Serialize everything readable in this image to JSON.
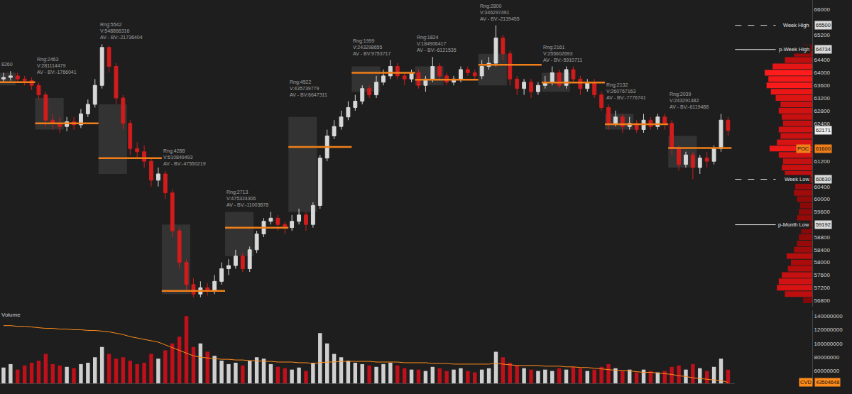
{
  "chart_data": {
    "type": "candlestick",
    "tick_labels": "y",
    "grid": false,
    "x": [
      0,
      1,
      2,
      3,
      4,
      5,
      6,
      7,
      8,
      9,
      10,
      11,
      12,
      13,
      14,
      15,
      16,
      17,
      18,
      19,
      20,
      21,
      22,
      23,
      24,
      25,
      26,
      27,
      28,
      29,
      30,
      31,
      32,
      33,
      34,
      35,
      36,
      37,
      38,
      39,
      40,
      41,
      42,
      43,
      44,
      45,
      46,
      47,
      48,
      49,
      50,
      51,
      52,
      53,
      54,
      55,
      56,
      57,
      58,
      59,
      60,
      61,
      62,
      63,
      64,
      65,
      66,
      67,
      68,
      69,
      70,
      71,
      72,
      73,
      74,
      75,
      76,
      77,
      78,
      79,
      80,
      81,
      82,
      83,
      84,
      85,
      86,
      87,
      88,
      89,
      90,
      91,
      92,
      93,
      94,
      95,
      96,
      97,
      98,
      99,
      100,
      101,
      102,
      103
    ],
    "open": [
      63800,
      63850,
      63900,
      63800,
      63750,
      63600,
      63300,
      62500,
      62400,
      62300,
      62450,
      62350,
      62700,
      63000,
      63600,
      64800,
      64200,
      63200,
      62400,
      61600,
      61500,
      61200,
      60600,
      60800,
      60200,
      59000,
      58000,
      57300,
      57000,
      57200,
      57100,
      57400,
      57800,
      57900,
      58200,
      57800,
      58400,
      58900,
      59300,
      59400,
      59200,
      59100,
      59300,
      59500,
      59200,
      59800,
      61300,
      62000,
      62300,
      62600,
      62900,
      63100,
      63500,
      63300,
      63700,
      63900,
      64200,
      63900,
      63800,
      64000,
      63600,
      63800,
      64200,
      63900,
      63700,
      63800,
      64100,
      64000,
      63900,
      64200,
      64300,
      65100,
      64600,
      63800,
      63500,
      63700,
      63400,
      63600,
      63700,
      64000,
      63600,
      64100,
      63800,
      63500,
      63700,
      63300,
      62900,
      62400,
      62600,
      62300,
      62400,
      62200,
      62500,
      62300,
      62600,
      62400,
      61600,
      61100,
      61400,
      61000,
      61300,
      61200,
      61600,
      62500
    ],
    "high": [
      64000,
      64050,
      64000,
      63900,
      63850,
      63700,
      63400,
      62700,
      62600,
      62600,
      62600,
      62850,
      63150,
      63800,
      64900,
      64850,
      64300,
      63300,
      62500,
      61800,
      61700,
      61300,
      61000,
      60900,
      60300,
      59100,
      58100,
      57500,
      57400,
      57350,
      57600,
      58000,
      58100,
      58400,
      58300,
      58500,
      59000,
      59400,
      59600,
      59500,
      59300,
      59500,
      59700,
      59600,
      59900,
      61400,
      62200,
      62500,
      62800,
      63100,
      63300,
      63600,
      63600,
      63900,
      64100,
      64400,
      64300,
      64000,
      64100,
      64100,
      63900,
      64500,
      64300,
      64000,
      63900,
      64200,
      64200,
      64100,
      64400,
      64500,
      65500,
      65200,
      64700,
      63900,
      63800,
      63800,
      63700,
      63900,
      64200,
      64100,
      64200,
      64200,
      63900,
      63800,
      63800,
      63400,
      63000,
      62800,
      62700,
      62600,
      62500,
      62700,
      62600,
      62700,
      62700,
      62500,
      61700,
      61500,
      61500,
      61400,
      61500,
      61700,
      62700,
      62600
    ],
    "low": [
      63700,
      63750,
      63700,
      63600,
      63450,
      63150,
      62300,
      62200,
      62100,
      62150,
      62200,
      62250,
      62600,
      62900,
      63500,
      64000,
      63000,
      62200,
      61400,
      61300,
      61000,
      60400,
      60400,
      60000,
      58800,
      57800,
      57100,
      56900,
      56900,
      56950,
      57000,
      57300,
      57600,
      57800,
      57700,
      57700,
      58300,
      58800,
      59200,
      59000,
      58900,
      59000,
      59200,
      59000,
      59100,
      59700,
      61200,
      61900,
      62200,
      62500,
      62800,
      63000,
      63200,
      63200,
      63600,
      63800,
      63800,
      63600,
      63700,
      63500,
      63400,
      63700,
      63800,
      63600,
      63600,
      63700,
      63900,
      63800,
      63800,
      64100,
      64200,
      64400,
      63600,
      63300,
      63300,
      63200,
      63300,
      63500,
      63600,
      63500,
      63500,
      63700,
      63300,
      63400,
      63200,
      62800,
      62200,
      62300,
      62100,
      62200,
      62100,
      62100,
      62200,
      62200,
      62200,
      61400,
      60900,
      61000,
      60630,
      60800,
      61000,
      61100,
      61500,
      62000
    ],
    "close": [
      63850,
      63900,
      63800,
      63750,
      63600,
      63300,
      62500,
      62400,
      62300,
      62450,
      62350,
      62700,
      63000,
      63600,
      64800,
      64200,
      63200,
      62400,
      61600,
      61500,
      61200,
      60600,
      60800,
      60200,
      59000,
      58000,
      57300,
      57000,
      57200,
      57100,
      57400,
      57800,
      57900,
      58200,
      57800,
      58400,
      58900,
      59300,
      59400,
      59200,
      59100,
      59300,
      59500,
      59200,
      59800,
      61300,
      62000,
      62300,
      62600,
      62900,
      63100,
      63500,
      63300,
      63700,
      63900,
      64200,
      63900,
      63800,
      64000,
      63600,
      63800,
      64200,
      63900,
      63700,
      63800,
      64100,
      64000,
      63900,
      64200,
      64300,
      65100,
      64600,
      63800,
      63500,
      63700,
      63400,
      63600,
      63700,
      64000,
      63600,
      64100,
      63800,
      63500,
      63700,
      63300,
      62900,
      62400,
      62600,
      62300,
      62400,
      62200,
      62500,
      62300,
      62600,
      62400,
      61600,
      61100,
      61400,
      61000,
      61300,
      61200,
      61600,
      62500,
      62171
    ],
    "xlim": [
      -0.5,
      104
    ],
    "ylim": [
      56600,
      66300
    ],
    "yticks": [
      56800,
      57200,
      57600,
      58000,
      58400,
      58800,
      59600,
      60000,
      60400,
      61200,
      62400,
      62800,
      63200,
      63600,
      64000,
      64400,
      65200,
      66000
    ],
    "sessions": [
      {
        "start": 0,
        "labels": [
          "8260"
        ],
        "poc": 63700,
        "value_area": [
          63600,
          64000
        ]
      },
      {
        "start": 5,
        "labels": [
          "Rng:2463",
          "V:281114479",
          "AV - BV:-1766041"
        ],
        "poc": 62400,
        "value_area": [
          62200,
          63200
        ]
      },
      {
        "start": 14,
        "labels": [
          "Rng:5542",
          "V:548866316",
          "AV - BV:-21736404"
        ],
        "poc": 61300,
        "value_area": [
          60800,
          63000
        ]
      },
      {
        "start": 23,
        "labels": [
          "Rng:4288",
          "V:610849493",
          "AV - BV:-47550219"
        ],
        "poc": 57100,
        "value_area": [
          57000,
          59200
        ]
      },
      {
        "start": 32,
        "labels": [
          "Rng:2713",
          "V:475324306",
          "AV - BV:-11003878"
        ],
        "poc": 59100,
        "value_area": [
          58200,
          59600
        ]
      },
      {
        "start": 41,
        "labels": [
          "Rng:4522",
          "V:435739779",
          "AV - BV:6647311"
        ],
        "poc": 61650,
        "value_area": [
          59600,
          62600
        ]
      },
      {
        "start": 50,
        "labels": [
          "Rng:1999",
          "V:243298655",
          "AV - BV:9753717"
        ],
        "poc": 64000,
        "value_area": [
          63400,
          64200
        ]
      },
      {
        "start": 59,
        "labels": [
          "Rng:1824",
          "V:184906417",
          "AV - BV:-6121535"
        ],
        "poc": 63780,
        "value_area": [
          63600,
          64200
        ]
      },
      {
        "start": 68,
        "labels": [
          "Rng:2800",
          "V:346297491",
          "AV - BV:-2139455"
        ],
        "poc": 64250,
        "value_area": [
          63600,
          64600
        ]
      },
      {
        "start": 77,
        "labels": [
          "Rng:2161",
          "V:255602693",
          "AV - BV:-5910711"
        ],
        "poc": 63690,
        "value_area": [
          63400,
          64000
        ]
      },
      {
        "start": 86,
        "labels": [
          "Rng:2132",
          "V:260767163",
          "AV - BV:-7776741"
        ],
        "poc": 62370,
        "value_area": [
          62200,
          62700
        ]
      },
      {
        "start": 95,
        "labels": [
          "Rng:2039",
          "V:243291482",
          "AV - BV:-6119488"
        ],
        "poc": 61620,
        "value_area": [
          61000,
          62000
        ]
      }
    ],
    "levels": [
      {
        "label": "Week High",
        "value": 65500,
        "line_style": "dashed",
        "color": "#e6e6e6"
      },
      {
        "label": "p-Week High",
        "value": 64734,
        "line_style": "solid",
        "color": "#e6e6e6"
      },
      {
        "label": "POC",
        "value": 61600,
        "line_style": "none",
        "color": "#f07f1a"
      },
      {
        "label": "Week Low",
        "value": 60630,
        "line_style": "dashed",
        "color": "#e6e6e6"
      },
      {
        "label": "p-Month Low",
        "value": 59192,
        "line_style": "solid",
        "color": "#e6e6e6"
      }
    ],
    "volume_profile": {
      "prices": [
        56800,
        57000,
        57200,
        57400,
        57600,
        57800,
        58000,
        58200,
        58400,
        58600,
        58800,
        59000,
        59200,
        59400,
        59600,
        59800,
        60000,
        60200,
        60400,
        60600,
        60800,
        61000,
        61200,
        61400,
        61600,
        61800,
        62000,
        62200,
        62400,
        62600,
        62800,
        63000,
        63200,
        63400,
        63600,
        63800,
        64000,
        64200,
        64400,
        64600,
        64800
      ],
      "volumes": [
        15,
        45,
        58,
        55,
        50,
        40,
        35,
        42,
        30,
        25,
        22,
        18,
        20,
        25,
        22,
        20,
        25,
        30,
        28,
        35,
        45,
        50,
        48,
        55,
        70,
        58,
        52,
        55,
        48,
        50,
        55,
        52,
        60,
        68,
        75,
        72,
        78,
        65,
        45,
        30,
        15
      ],
      "xlim": [
        0,
        80
      ]
    },
    "volume": {
      "title": "Volume",
      "values": [
        65000000,
        70000000,
        62000000,
        68000000,
        72000000,
        75000000,
        85000000,
        70000000,
        68000000,
        66000000,
        64000000,
        70000000,
        72000000,
        80000000,
        95000000,
        85000000,
        78000000,
        80000000,
        75000000,
        70000000,
        72000000,
        85000000,
        78000000,
        90000000,
        100000000,
        110000000,
        140000000,
        95000000,
        100000000,
        88000000,
        82000000,
        75000000,
        70000000,
        72000000,
        68000000,
        75000000,
        80000000,
        78000000,
        70000000,
        66000000,
        64000000,
        62000000,
        65000000,
        60000000,
        72000000,
        115000000,
        100000000,
        85000000,
        80000000,
        75000000,
        72000000,
        70000000,
        68000000,
        66000000,
        70000000,
        72000000,
        68000000,
        64000000,
        62000000,
        62000000,
        60000000,
        66000000,
        64000000,
        60000000,
        62000000,
        64000000,
        60000000,
        58000000,
        62000000,
        64000000,
        88000000,
        80000000,
        72000000,
        68000000,
        64000000,
        62000000,
        60000000,
        62000000,
        60000000,
        64000000,
        62000000,
        66000000,
        64000000,
        60000000,
        62000000,
        66000000,
        70000000,
        64000000,
        60000000,
        62000000,
        58000000,
        62000000,
        60000000,
        58000000,
        60000000,
        66000000,
        68000000,
        62000000,
        70000000,
        64000000,
        60000000,
        66000000,
        78000000,
        62000000
      ],
      "ylim": [
        42000000,
        148000000
      ],
      "yticks": [
        60000000,
        80000000,
        100000000,
        120000000,
        140000000
      ],
      "series": [
        {
          "name": "CVD",
          "color": "#ff8c1a",
          "type": "line",
          "values": [
            126000000,
            126000000,
            125000000,
            125000000,
            124000000,
            123000000,
            122000000,
            122000000,
            121000000,
            121000000,
            120000000,
            120000000,
            119000000,
            119000000,
            118000000,
            117000000,
            115000000,
            113000000,
            110000000,
            108000000,
            106000000,
            104000000,
            102000000,
            98000000,
            94000000,
            90000000,
            86000000,
            82000000,
            80000000,
            79000000,
            78000000,
            77000000,
            77000000,
            76000000,
            76000000,
            75000000,
            75000000,
            74000000,
            74000000,
            73000000,
            73000000,
            73000000,
            72000000,
            72000000,
            71000000,
            72000000,
            73000000,
            73000000,
            74000000,
            74000000,
            74000000,
            74000000,
            74000000,
            73000000,
            73000000,
            73000000,
            73000000,
            72000000,
            72000000,
            72000000,
            72000000,
            71000000,
            71000000,
            71000000,
            70000000,
            70000000,
            70000000,
            70000000,
            70000000,
            70000000,
            71000000,
            70000000,
            69000000,
            68000000,
            68000000,
            68000000,
            68000000,
            67000000,
            67000000,
            67000000,
            66000000,
            66000000,
            65000000,
            65000000,
            64000000,
            63000000,
            62000000,
            61000000,
            61000000,
            60000000,
            59000000,
            58000000,
            58000000,
            57000000,
            56000000,
            55000000,
            53000000,
            52000000,
            50000000,
            49000000,
            48000000,
            47000000,
            46000000,
            43504648
          ]
        }
      ]
    }
  }
}
